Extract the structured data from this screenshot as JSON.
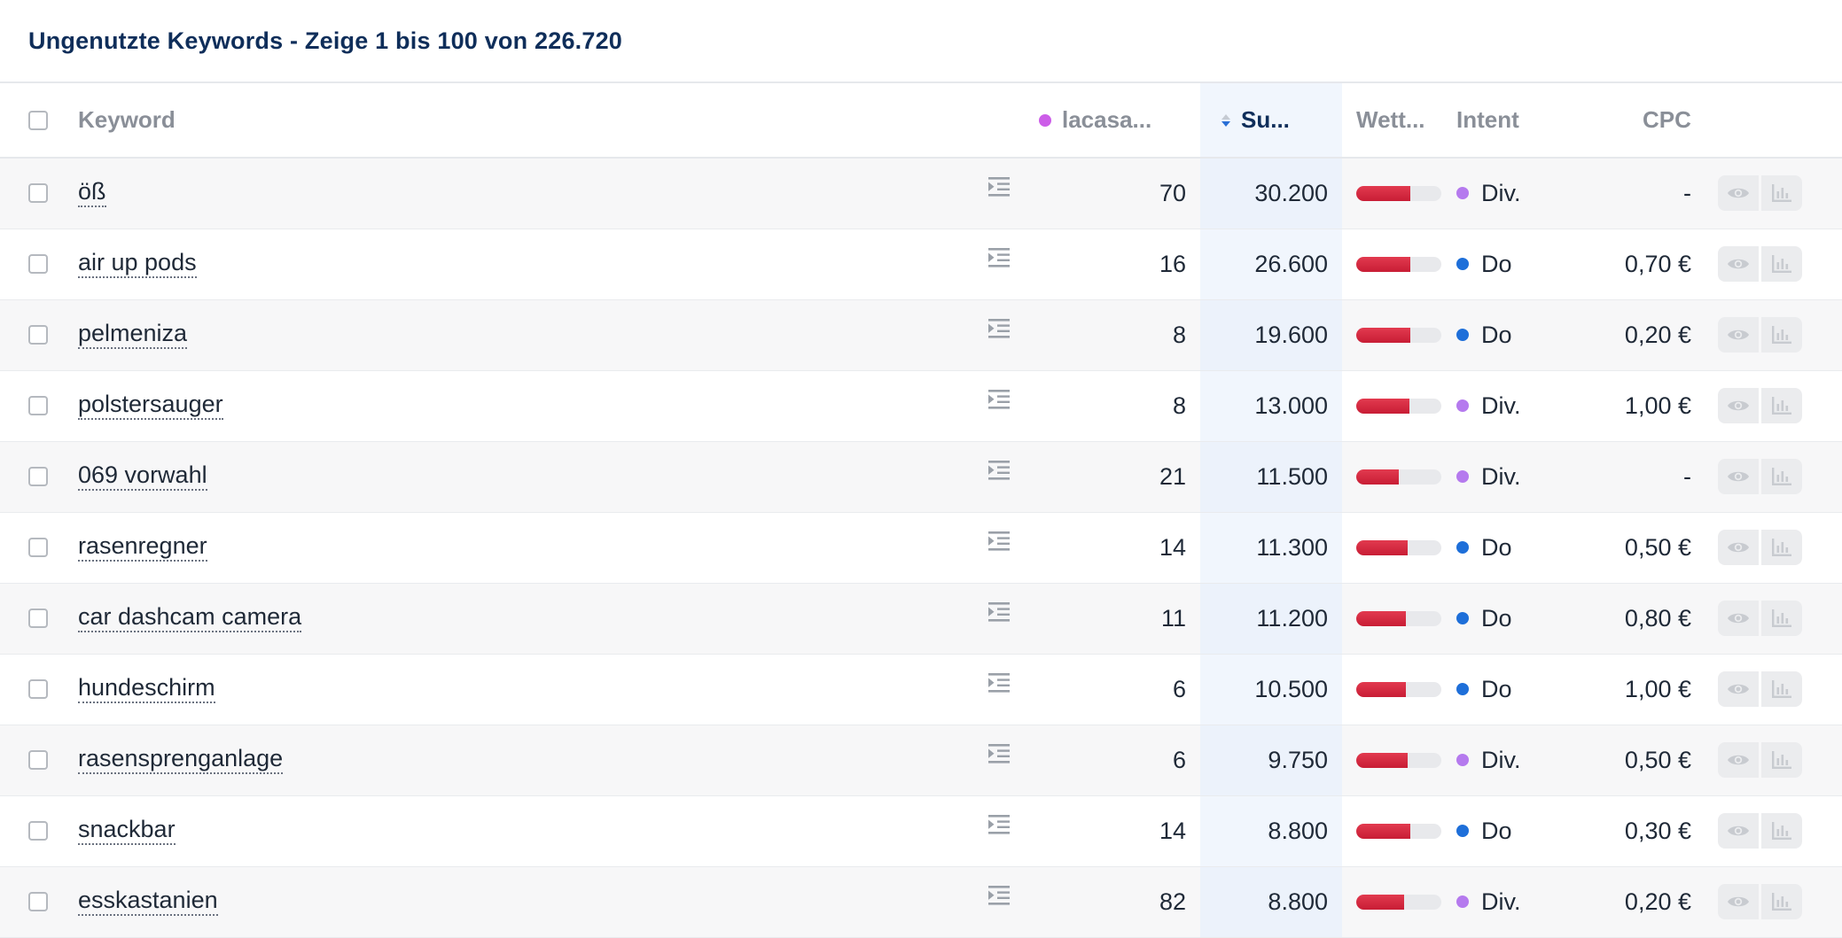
{
  "title": "Ungenutzte Keywords - Zeige 1 bis 100 von 226.720",
  "columns": {
    "keyword": "Keyword",
    "competitor": "lacasa...",
    "volume": "Su...",
    "competition": "Wett...",
    "intent": "Intent",
    "cpc": "CPC"
  },
  "colors": {
    "competitor_dot": "#cc5de8",
    "intent_div": "#b57aee",
    "intent_do": "#1e6fd9",
    "bar_fill": "#d0213a"
  },
  "rows": [
    {
      "keyword": "öß",
      "position": "70",
      "volume": "30.200",
      "competition": 0.64,
      "intent": "Div.",
      "cpc": "-"
    },
    {
      "keyword": "air up pods",
      "position": "16",
      "volume": "26.600",
      "competition": 0.64,
      "intent": "Do",
      "cpc": "0,70 €"
    },
    {
      "keyword": "pelmeniza",
      "position": "8",
      "volume": "19.600",
      "competition": 0.64,
      "intent": "Do",
      "cpc": "0,20 €"
    },
    {
      "keyword": "polstersauger",
      "position": "8",
      "volume": "13.000",
      "competition": 0.62,
      "intent": "Div.",
      "cpc": "1,00 €"
    },
    {
      "keyword": "069 vorwahl",
      "position": "21",
      "volume": "11.500",
      "competition": 0.5,
      "intent": "Div.",
      "cpc": "-"
    },
    {
      "keyword": "rasenregner",
      "position": "14",
      "volume": "11.300",
      "competition": 0.6,
      "intent": "Do",
      "cpc": "0,50 €"
    },
    {
      "keyword": "car dashcam camera",
      "position": "11",
      "volume": "11.200",
      "competition": 0.58,
      "intent": "Do",
      "cpc": "0,80 €"
    },
    {
      "keyword": "hundeschirm",
      "position": "6",
      "volume": "10.500",
      "competition": 0.58,
      "intent": "Do",
      "cpc": "1,00 €"
    },
    {
      "keyword": "rasensprenganlage",
      "position": "6",
      "volume": "9.750",
      "competition": 0.6,
      "intent": "Div.",
      "cpc": "0,50 €"
    },
    {
      "keyword": "snackbar",
      "position": "14",
      "volume": "8.800",
      "competition": 0.64,
      "intent": "Do",
      "cpc": "0,30 €"
    },
    {
      "keyword": "esskastanien",
      "position": "82",
      "volume": "8.800",
      "competition": 0.56,
      "intent": "Div.",
      "cpc": "0,20 €"
    }
  ]
}
